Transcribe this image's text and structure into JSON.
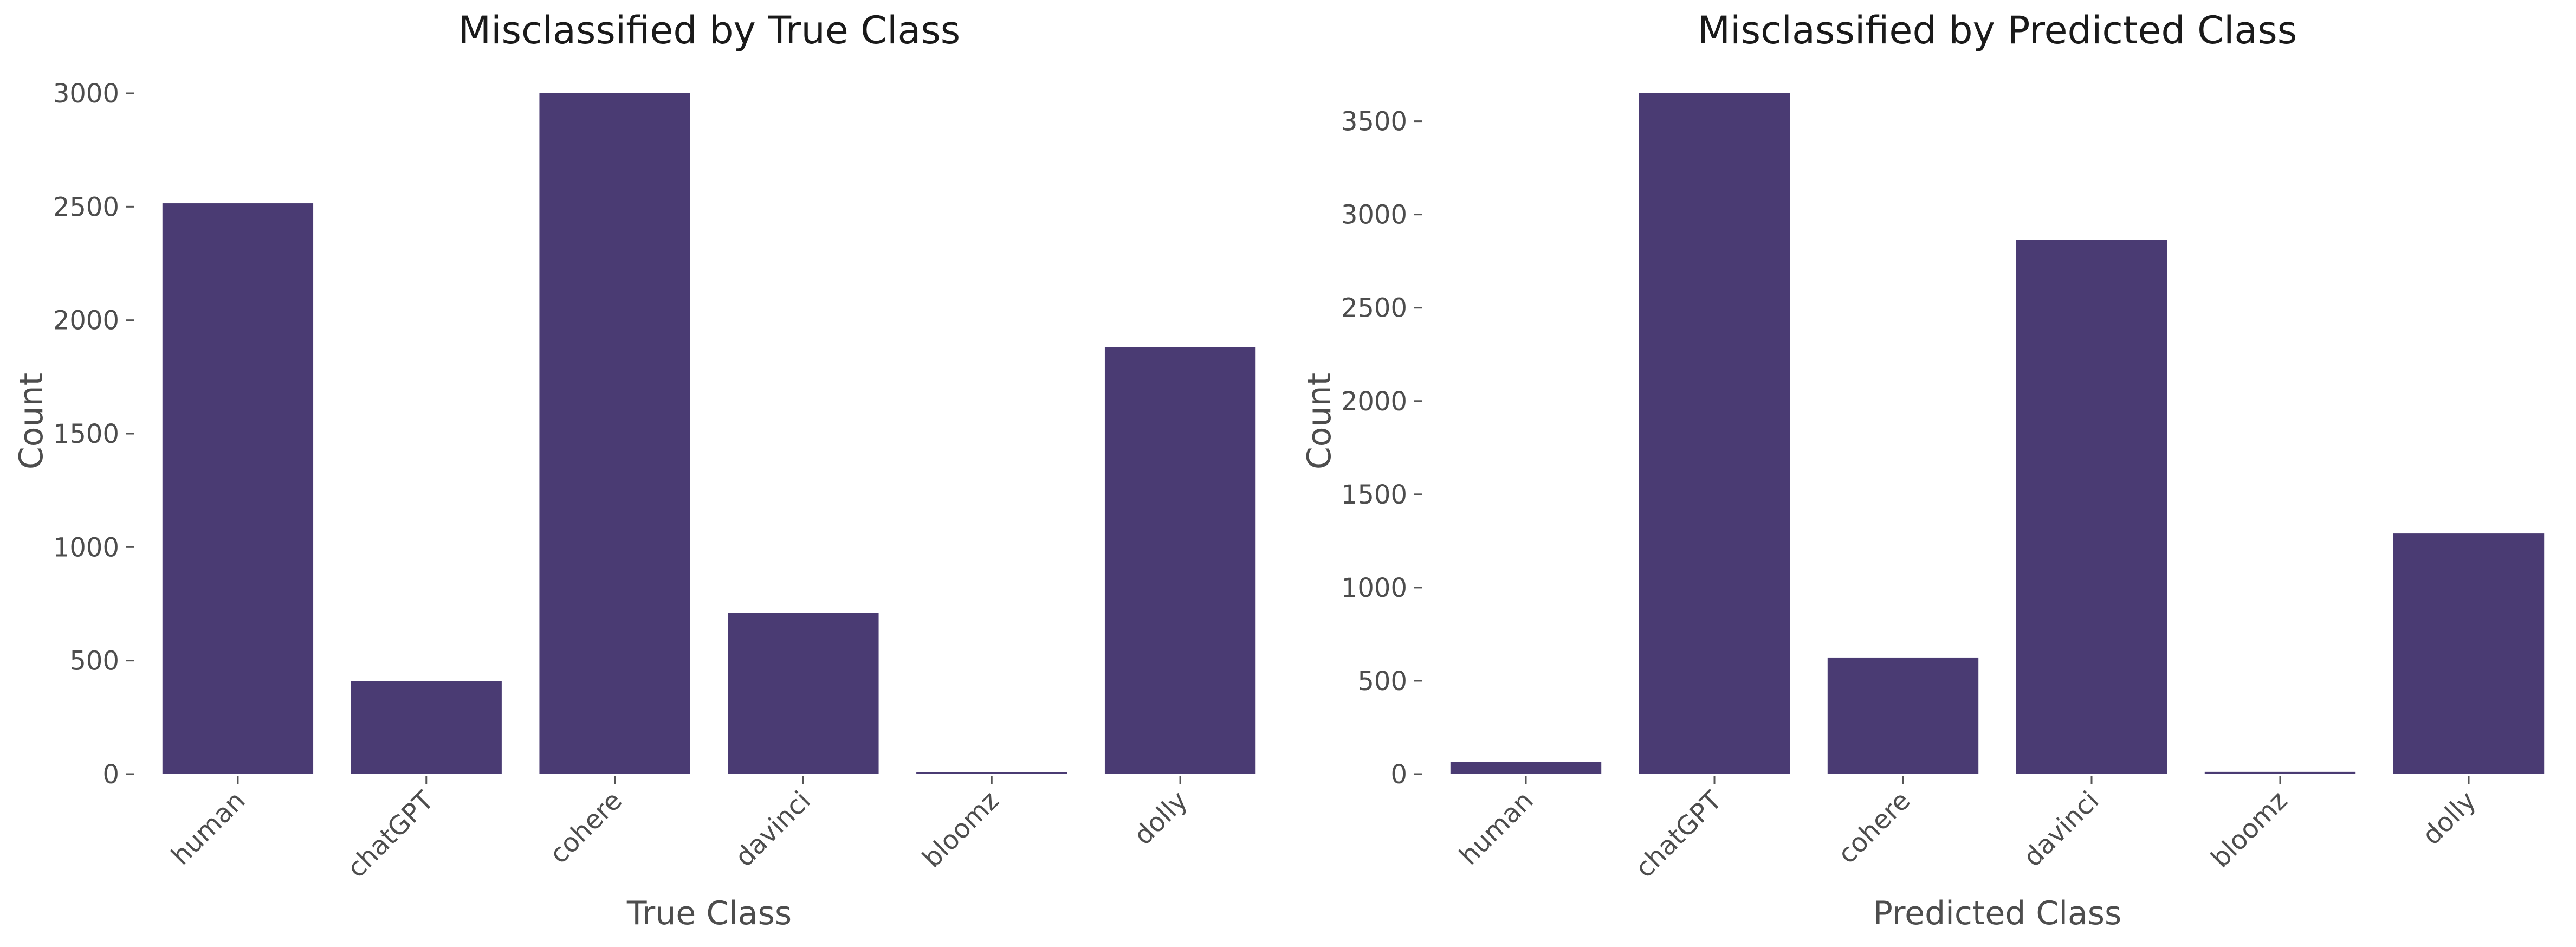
{
  "colors": {
    "bar": "#4a3b73",
    "text": "#4d4d4d",
    "title": "#1a1a1a",
    "background": "#ffffff"
  },
  "chart_data": [
    {
      "type": "bar",
      "title": "Misclassified by True Class",
      "xlabel": "True Class",
      "ylabel": "Count",
      "categories": [
        "human",
        "chatGPT",
        "cohere",
        "davinci",
        "bloomz",
        "dolly"
      ],
      "values": [
        2515,
        410,
        3000,
        710,
        8,
        1880
      ],
      "ylim": [
        0,
        3000
      ],
      "yticks": [
        0,
        500,
        1000,
        1500,
        2000,
        2500,
        3000
      ],
      "grid": false,
      "legend": false
    },
    {
      "type": "bar",
      "title": "Misclassified by Predicted Class",
      "xlabel": "Predicted Class",
      "ylabel": "Count",
      "categories": [
        "human",
        "chatGPT",
        "cohere",
        "davinci",
        "bloomz",
        "dolly"
      ],
      "values": [
        65,
        3650,
        625,
        2865,
        12,
        1290
      ],
      "ylim": [
        0,
        3650
      ],
      "yticks": [
        0,
        500,
        1000,
        1500,
        2000,
        2500,
        3000,
        3500
      ],
      "grid": false,
      "legend": false
    }
  ]
}
